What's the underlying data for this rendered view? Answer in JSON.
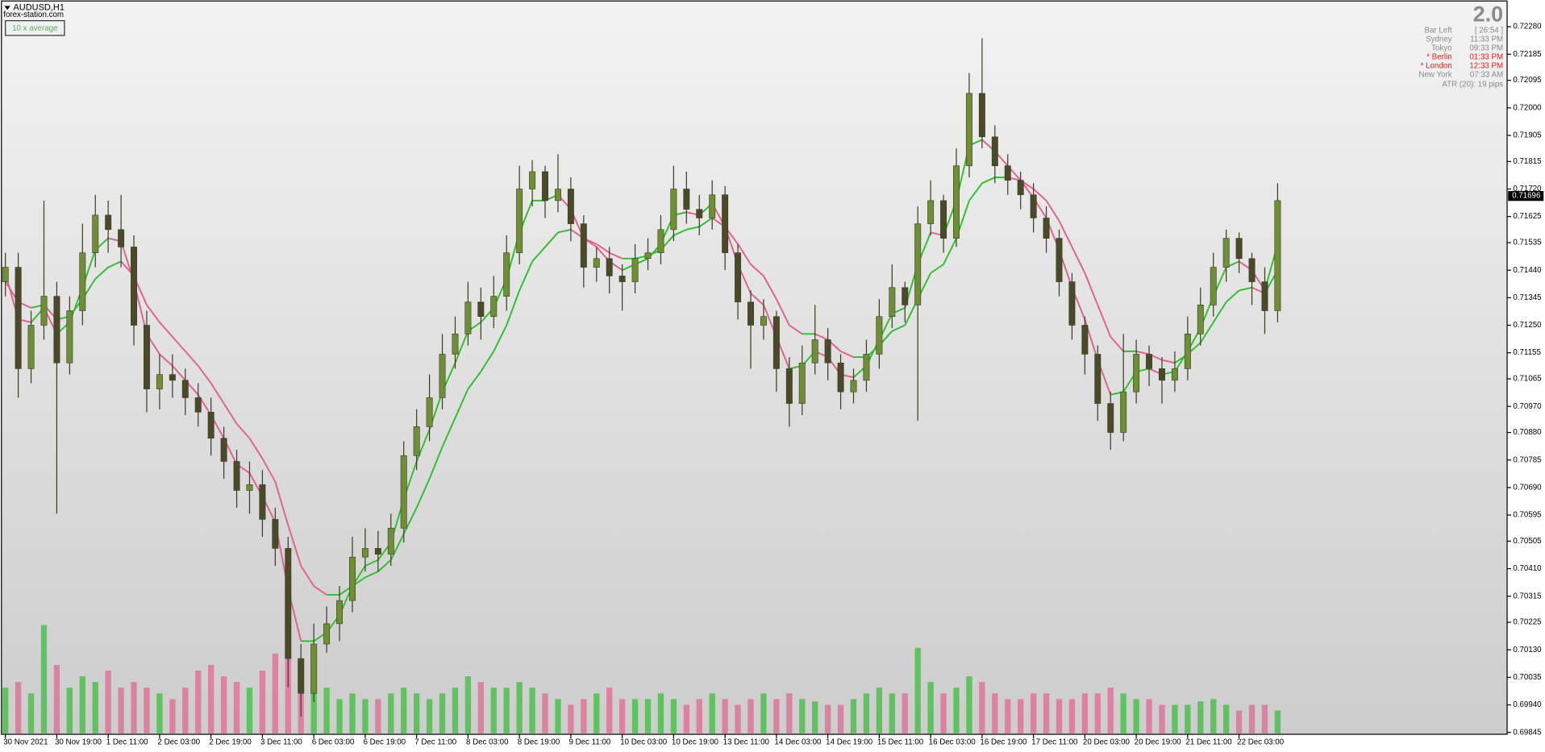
{
  "header": {
    "symbol": "AUDUSD,H1",
    "site": "forex-station.com",
    "button": "10 x average"
  },
  "info": {
    "version": "2.0",
    "rows": [
      [
        "Bar Left",
        "[ 26:54 ]"
      ],
      [
        "Sydney",
        "11:33 PM"
      ],
      [
        "Tokyo",
        "09:33 PM"
      ],
      [
        "* Berlin",
        "01:33 PM"
      ],
      [
        "* London",
        "12:33 PM"
      ],
      [
        "New York",
        "07:33 AM"
      ]
    ],
    "highlight_color": "#e02020",
    "atr": "ATR (20): 19 pips"
  },
  "chart_data": {
    "type": "candlestick",
    "categories": [
      "30 Nov 2021",
      null,
      null,
      null,
      "30 Nov 19:00",
      null,
      null,
      null,
      "1 Dec 11:00",
      null,
      null,
      null,
      "2 Dec 03:00",
      null,
      null,
      null,
      "2 Dec 19:00",
      null,
      null,
      null,
      "3 Dec 11:00",
      null,
      null,
      null,
      "6 Dec 03:00",
      null,
      null,
      null,
      "6 Dec 19:00",
      null,
      null,
      null,
      "7 Dec 11:00",
      null,
      null,
      null,
      "8 Dec 03:00",
      null,
      null,
      null,
      "8 Dec 19:00",
      null,
      null,
      null,
      "9 Dec 11:00",
      null,
      null,
      null,
      "10 Dec 03:00",
      null,
      null,
      null,
      "10 Dec 19:00",
      null,
      null,
      null,
      "13 Dec 11:00",
      null,
      null,
      null,
      "14 Dec 03:00",
      null,
      null,
      null,
      "14 Dec 19:00",
      null,
      null,
      null,
      "15 Dec 11:00",
      null,
      null,
      null,
      "16 Dec 03:00",
      null,
      null,
      null,
      "16 Dec 19:00",
      null,
      null,
      null,
      "17 Dec 11:00",
      null,
      null,
      null,
      "20 Dec 03:00",
      null,
      null,
      null,
      "20 Dec 19:00",
      null,
      null,
      null,
      "21 Dec 11:00",
      null,
      null,
      null,
      "22 Dec 03:00",
      null,
      null,
      null
    ],
    "open": [
      0.714,
      0.7145,
      0.711,
      0.7125,
      0.7135,
      0.7112,
      0.713,
      0.715,
      0.7163,
      0.7158,
      0.7152,
      0.7125,
      0.7103,
      0.7108,
      0.7106,
      0.71,
      0.7095,
      0.7086,
      0.7078,
      0.7068,
      0.707,
      0.7058,
      0.7048,
      0.701,
      0.6998,
      0.7015,
      0.7022,
      0.703,
      0.7045,
      0.7048,
      0.7046,
      0.7055,
      0.708,
      0.709,
      0.71,
      0.7115,
      0.7122,
      0.7133,
      0.7128,
      0.7135,
      0.715,
      0.7172,
      0.7178,
      0.7168,
      0.7172,
      0.716,
      0.7145,
      0.7148,
      0.7142,
      0.714,
      0.7148,
      0.715,
      0.7158,
      0.7172,
      0.7165,
      0.7162,
      0.717,
      0.715,
      0.7133,
      0.7125,
      0.7128,
      0.711,
      0.7098,
      0.7112,
      0.712,
      0.7112,
      0.7102,
      0.7106,
      0.7115,
      0.7128,
      0.7138,
      0.7132,
      0.716,
      0.7168,
      0.7155,
      0.718,
      0.7205,
      0.719,
      0.718,
      0.7175,
      0.717,
      0.7162,
      0.7155,
      0.714,
      0.7125,
      0.7115,
      0.7098,
      0.7088,
      0.7102,
      0.7115,
      0.711,
      0.7106,
      0.711,
      0.7122,
      0.7132,
      0.7145,
      0.7155,
      0.7148,
      0.714,
      0.713
    ],
    "high": [
      0.715,
      0.715,
      0.713,
      0.7168,
      0.714,
      0.7135,
      0.716,
      0.717,
      0.7168,
      0.717,
      0.7156,
      0.713,
      0.7115,
      0.7115,
      0.711,
      0.7105,
      0.71,
      0.709,
      0.7082,
      0.7078,
      0.7075,
      0.7062,
      0.7052,
      0.7015,
      0.7022,
      0.7028,
      0.7035,
      0.7052,
      0.7055,
      0.7054,
      0.706,
      0.7085,
      0.7096,
      0.7108,
      0.7122,
      0.7128,
      0.714,
      0.7138,
      0.7142,
      0.7156,
      0.718,
      0.7182,
      0.718,
      0.7184,
      0.7176,
      0.7163,
      0.7152,
      0.7152,
      0.7146,
      0.7153,
      0.7155,
      0.7163,
      0.718,
      0.7178,
      0.717,
      0.7175,
      0.7173,
      0.7153,
      0.7137,
      0.7134,
      0.713,
      0.7114,
      0.7118,
      0.7132,
      0.7124,
      0.7115,
      0.711,
      0.712,
      0.7134,
      0.7146,
      0.714,
      0.7166,
      0.7175,
      0.717,
      0.7186,
      0.7212,
      0.7224,
      0.7194,
      0.7184,
      0.7178,
      0.7174,
      0.7166,
      0.7158,
      0.7143,
      0.7128,
      0.7118,
      0.7102,
      0.7122,
      0.712,
      0.7118,
      0.7114,
      0.7116,
      0.7128,
      0.7138,
      0.715,
      0.7158,
      0.7157,
      0.715,
      0.7145,
      0.7174
    ],
    "low": [
      0.7135,
      0.71,
      0.7105,
      0.712,
      0.706,
      0.7108,
      0.7125,
      0.7145,
      0.715,
      0.7145,
      0.7118,
      0.7095,
      0.7096,
      0.71,
      0.7094,
      0.709,
      0.708,
      0.7072,
      0.7062,
      0.706,
      0.7052,
      0.7042,
      0.7,
      0.699,
      0.6995,
      0.7012,
      0.7016,
      0.7026,
      0.704,
      0.704,
      0.7042,
      0.705,
      0.7075,
      0.7085,
      0.7096,
      0.711,
      0.7118,
      0.712,
      0.7124,
      0.713,
      0.7146,
      0.7166,
      0.7162,
      0.7164,
      0.7154,
      0.7138,
      0.714,
      0.7136,
      0.713,
      0.7136,
      0.7144,
      0.7146,
      0.7154,
      0.716,
      0.7156,
      0.7158,
      0.7144,
      0.7127,
      0.711,
      0.712,
      0.7102,
      0.709,
      0.7094,
      0.7108,
      0.7106,
      0.7096,
      0.7098,
      0.7102,
      0.711,
      0.7124,
      0.7126,
      0.7092,
      0.7156,
      0.715,
      0.7152,
      0.7176,
      0.7186,
      0.7174,
      0.717,
      0.7165,
      0.7157,
      0.715,
      0.7135,
      0.712,
      0.7108,
      0.7092,
      0.7082,
      0.7085,
      0.7098,
      0.7104,
      0.7098,
      0.7102,
      0.7106,
      0.7118,
      0.7128,
      0.714,
      0.7143,
      0.7132,
      0.7122,
      0.7126
    ],
    "close": [
      0.7145,
      0.711,
      0.7125,
      0.7135,
      0.7112,
      0.713,
      0.715,
      0.7163,
      0.7158,
      0.7152,
      0.7125,
      0.7103,
      0.7108,
      0.7106,
      0.71,
      0.7095,
      0.7086,
      0.7078,
      0.7068,
      0.707,
      0.7058,
      0.7048,
      0.701,
      0.6998,
      0.7015,
      0.7022,
      0.703,
      0.7045,
      0.7048,
      0.7046,
      0.7055,
      0.708,
      0.709,
      0.71,
      0.7115,
      0.7122,
      0.7133,
      0.7128,
      0.7135,
      0.715,
      0.7172,
      0.7178,
      0.7168,
      0.7172,
      0.716,
      0.7145,
      0.7148,
      0.7142,
      0.714,
      0.7148,
      0.715,
      0.7158,
      0.7172,
      0.7165,
      0.7162,
      0.717,
      0.715,
      0.7133,
      0.7125,
      0.7128,
      0.711,
      0.7098,
      0.7112,
      0.712,
      0.7112,
      0.7102,
      0.7106,
      0.7115,
      0.7128,
      0.7138,
      0.7132,
      0.716,
      0.7168,
      0.7155,
      0.718,
      0.7205,
      0.719,
      0.718,
      0.7175,
      0.717,
      0.7162,
      0.7155,
      0.714,
      0.7125,
      0.7115,
      0.7098,
      0.7088,
      0.7102,
      0.7115,
      0.711,
      0.7106,
      0.711,
      0.7122,
      0.7132,
      0.7145,
      0.7155,
      0.7148,
      0.714,
      0.713,
      0.7168
    ],
    "series": [
      {
        "values": [
          0.7143,
          0.7127,
          0.7126,
          0.7131,
          0.7122,
          0.7126,
          0.7138,
          0.7151,
          0.7155,
          0.7154,
          0.714,
          0.7122,
          0.7115,
          0.7111,
          0.7106,
          0.7101,
          0.7094,
          0.7086,
          0.7077,
          0.7074,
          0.7066,
          0.7057,
          0.7034,
          0.7016,
          0.7016,
          0.7019,
          0.7025,
          0.7035,
          0.7042,
          0.7044,
          0.705,
          0.7065,
          0.7078,
          0.7089,
          0.7102,
          0.7112,
          0.7123,
          0.7126,
          0.7131,
          0.7141,
          0.7157,
          0.7168,
          0.7168,
          0.717,
          0.7165,
          0.7155,
          0.7152,
          0.7147,
          0.7144,
          0.7146,
          0.7148,
          0.7153,
          0.7163,
          0.7164,
          0.7163,
          0.7167,
          0.7159,
          0.7146,
          0.7136,
          0.7132,
          0.7121,
          0.711,
          0.7111,
          0.7116,
          0.7114,
          0.7108,
          0.7107,
          0.7111,
          0.712,
          0.7129,
          0.7131,
          0.7146,
          0.7157,
          0.7156,
          0.7168,
          0.7187,
          0.7189,
          0.7185,
          0.718,
          0.7175,
          0.7169,
          0.7162,
          0.7151,
          0.7138,
          0.7127,
          0.7113,
          0.7101,
          0.7102,
          0.7109,
          0.711,
          0.7108,
          0.7109,
          0.7116,
          0.7124,
          0.7135,
          0.7145,
          0.7147,
          0.7144,
          0.7137,
          0.7153
        ]
      },
      {
        "values": [
          0.714,
          0.7133,
          0.7131,
          0.7132,
          0.7127,
          0.7128,
          0.7134,
          0.7141,
          0.7145,
          0.7147,
          0.7142,
          0.7132,
          0.7126,
          0.7121,
          0.7116,
          0.7111,
          0.7105,
          0.7098,
          0.7091,
          0.7086,
          0.7079,
          0.7071,
          0.7056,
          0.7042,
          0.7035,
          0.7032,
          0.7032,
          0.7035,
          0.7038,
          0.704,
          0.7044,
          0.7053,
          0.7062,
          0.7072,
          0.7083,
          0.7093,
          0.7103,
          0.7109,
          0.7116,
          0.7125,
          0.7137,
          0.7147,
          0.7152,
          0.7157,
          0.7158,
          0.7155,
          0.7153,
          0.715,
          0.7148,
          0.7148,
          0.7149,
          0.7151,
          0.7156,
          0.7158,
          0.7159,
          0.7162,
          0.7159,
          0.7153,
          0.7146,
          0.7142,
          0.7134,
          0.7125,
          0.7122,
          0.7122,
          0.712,
          0.7116,
          0.7114,
          0.7114,
          0.7118,
          0.7123,
          0.7125,
          0.7134,
          0.7143,
          0.7146,
          0.7155,
          0.7168,
          0.7174,
          0.7176,
          0.7176,
          0.7175,
          0.7172,
          0.7168,
          0.7161,
          0.7152,
          0.7143,
          0.7132,
          0.7121,
          0.7116,
          0.7116,
          0.7115,
          0.7113,
          0.7112,
          0.7115,
          0.7119,
          0.7126,
          0.7133,
          0.7137,
          0.7138,
          0.7136,
          0.7144
        ]
      }
    ],
    "volume": [
      40,
      45,
      35,
      95,
      60,
      40,
      50,
      45,
      55,
      40,
      45,
      40,
      35,
      30,
      40,
      55,
      60,
      50,
      45,
      40,
      55,
      70,
      85,
      60,
      45,
      40,
      30,
      35,
      30,
      30,
      35,
      40,
      35,
      30,
      35,
      40,
      50,
      45,
      40,
      40,
      45,
      40,
      35,
      30,
      25,
      30,
      35,
      40,
      30,
      30,
      30,
      35,
      30,
      25,
      30,
      35,
      30,
      25,
      30,
      35,
      30,
      35,
      30,
      28,
      25,
      25,
      30,
      35,
      40,
      35,
      35,
      75,
      45,
      35,
      40,
      50,
      45,
      35,
      30,
      30,
      35,
      35,
      30,
      30,
      35,
      35,
      40,
      35,
      30,
      30,
      25,
      25,
      25,
      28,
      30,
      25,
      20,
      25,
      25,
      20
    ],
    "colors": {
      "up": "#2fbf2f",
      "down": "#e0628e",
      "bull_body": "#6f8f34",
      "bear_body": "#4a4a2a",
      "wick": "#3c3c24"
    },
    "last_price": {
      "value": 0.71696,
      "label": "0.71696"
    },
    "ylim": [
      0.69842,
      0.72362
    ],
    "yticks": [
      {
        "value": 0.7228,
        "label": "0.72280"
      },
      0.72185,
      0.72095,
      {
        "value": 0.72,
        "label": "0.72000"
      },
      0.71905,
      0.71815,
      {
        "value": 0.7172,
        "label": "0.71720"
      },
      0.71625,
      0.71535,
      {
        "value": 0.7144,
        "label": "0.71440"
      },
      0.71345,
      {
        "value": 0.7125,
        "label": "0.71250"
      },
      0.71155,
      0.71065,
      {
        "value": 0.7097,
        "label": "0.70970"
      },
      {
        "value": 0.7088,
        "label": "0.70880"
      },
      0.70785,
      {
        "value": 0.7069,
        "label": "0.70690"
      },
      0.70595,
      0.70505,
      {
        "value": 0.7041,
        "label": "0.70410"
      },
      0.70315,
      0.70225,
      {
        "value": 0.7013,
        "label": "0.70130"
      },
      0.70035,
      {
        "value": 0.6994,
        "label": "0.69940"
      },
      0.69845
    ]
  }
}
